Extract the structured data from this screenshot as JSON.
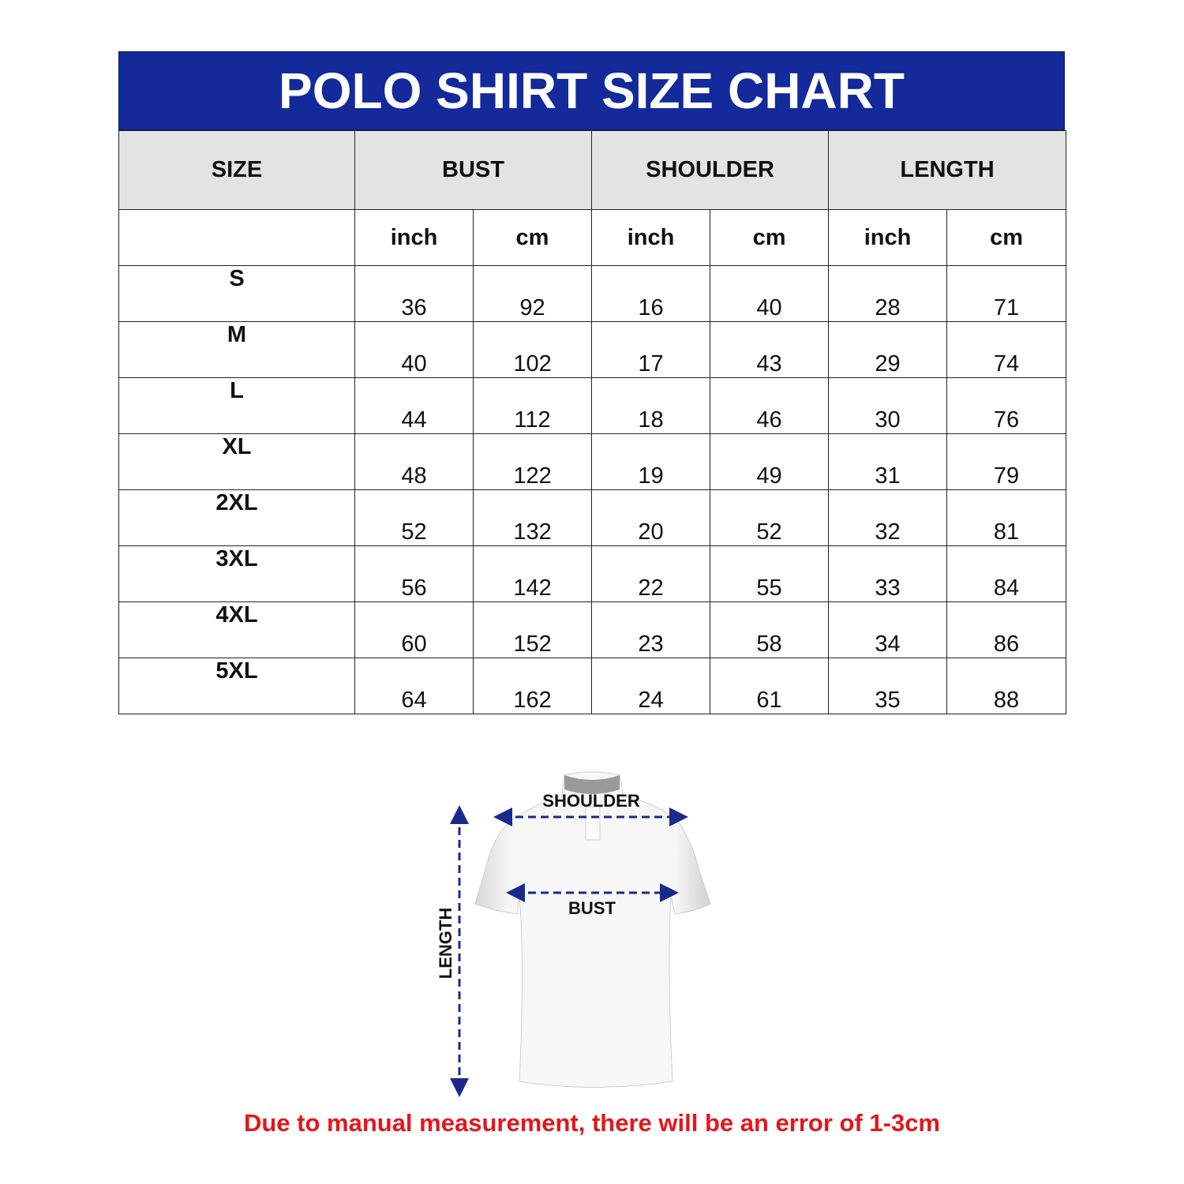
{
  "title": "POLO SHIRT SIZE CHART",
  "colors": {
    "header_blue": "#14299a",
    "header_gray": "#e3e3e3",
    "note_red": "#e3161c",
    "arrow_blue": "#1a2a8c"
  },
  "chart_data": {
    "type": "table",
    "title": "POLO SHIRT SIZE CHART",
    "group_headers": [
      "SIZE",
      "BUST",
      "SHOULDER",
      "LENGTH"
    ],
    "unit_headers": [
      "",
      "inch",
      "cm",
      "inch",
      "cm",
      "inch",
      "cm"
    ],
    "rows": [
      {
        "size": "S",
        "values": [
          "36",
          "92",
          "16",
          "40",
          "28",
          "71"
        ]
      },
      {
        "size": "M",
        "values": [
          "40",
          "102",
          "17",
          "43",
          "29",
          "74"
        ]
      },
      {
        "size": "L",
        "values": [
          "44",
          "112",
          "18",
          "46",
          "30",
          "76"
        ]
      },
      {
        "size": "XL",
        "values": [
          "48",
          "122",
          "19",
          "49",
          "31",
          "79"
        ]
      },
      {
        "size": "2XL",
        "values": [
          "52",
          "132",
          "20",
          "52",
          "32",
          "81"
        ]
      },
      {
        "size": "3XL",
        "values": [
          "56",
          "142",
          "22",
          "55",
          "33",
          "84"
        ]
      },
      {
        "size": "4XL",
        "values": [
          "60",
          "152",
          "23",
          "58",
          "34",
          "86"
        ]
      },
      {
        "size": "5XL",
        "values": [
          "64",
          "162",
          "24",
          "61",
          "35",
          "88"
        ]
      }
    ]
  },
  "diagram": {
    "shoulder_label": "SHOULDER",
    "bust_label": "BUST",
    "length_label": "LENGTH",
    "icon": "polo-shirt-icon"
  },
  "note": "Due to manual measurement, there will be an error of 1-3cm"
}
